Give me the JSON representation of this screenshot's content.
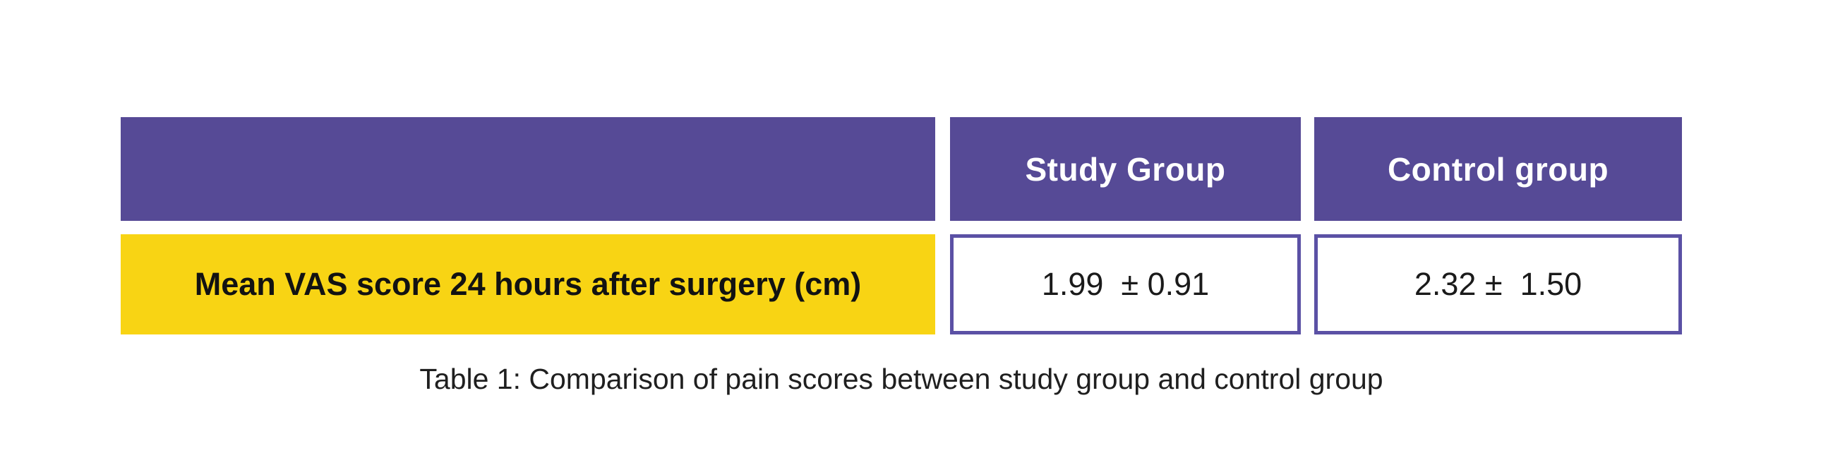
{
  "page": {
    "background_color": "#ffffff"
  },
  "table": {
    "header_bg_color": "#564a96",
    "header_text_color": "#ffffff",
    "label_bg_color": "#f8d414",
    "label_text_color": "#121212",
    "value_cell_border_color": "#5b51a5",
    "header": {
      "blank": "",
      "study": "Study Group",
      "control": "Control group"
    },
    "row": {
      "label": "Mean VAS score 24 hours after surgery (cm)",
      "study_value": "1.99  ± 0.91",
      "control_value": "2.32 ±  1.50"
    }
  },
  "caption": "Table 1: Comparison of pain scores between study group and control group"
}
